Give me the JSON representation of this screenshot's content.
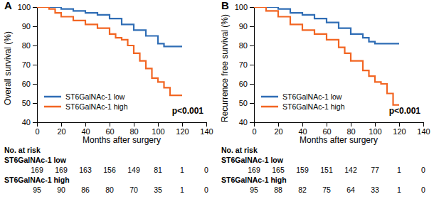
{
  "chart_data": [
    {
      "type": "line",
      "title": "A",
      "x_label": "Months after surgery",
      "y_label": "Overall survival (%)",
      "xlim": [
        0,
        140
      ],
      "xticks": [
        0,
        20,
        40,
        60,
        80,
        100,
        120,
        140
      ],
      "ylim": [
        40,
        100
      ],
      "yticks": [
        40,
        50,
        60,
        70,
        80,
        90,
        100
      ],
      "legend": "lower left",
      "line_style": "step",
      "annotation": "p<0.001",
      "series": [
        {
          "name": "ST6GalNAc-1 low",
          "color": "#2f6db5",
          "x": [
            0,
            20,
            30,
            40,
            50,
            60,
            70,
            80,
            90,
            100,
            105,
            120
          ],
          "values": [
            100,
            99,
            98,
            97,
            96,
            94,
            91,
            88,
            85,
            81,
            79.5,
            79.5
          ]
        },
        {
          "name": "ST6GalNAc-1 high",
          "color": "#f26522",
          "x": [
            0,
            10,
            15,
            20,
            30,
            40,
            50,
            60,
            65,
            70,
            75,
            80,
            85,
            90,
            95,
            100,
            105,
            110,
            120
          ],
          "values": [
            100,
            99,
            97,
            95,
            93,
            91,
            89,
            86,
            84,
            83,
            80,
            76,
            72,
            68,
            63,
            61,
            58,
            54,
            54
          ]
        }
      ],
      "risk_table": {
        "title": "No. at risk",
        "rows": [
          {
            "name": "ST6GalNAc-1 low",
            "values": [
              169,
              169,
              163,
              156,
              149,
              81,
              1,
              0
            ]
          },
          {
            "name": "ST6GalNAc-1 high",
            "values": [
              95,
              90,
              86,
              80,
              70,
              35,
              1,
              0
            ]
          }
        ]
      }
    },
    {
      "type": "line",
      "title": "B",
      "x_label": "Months after surgery",
      "y_label": "Recurrence free survival (%)",
      "xlim": [
        0,
        140
      ],
      "xticks": [
        0,
        20,
        40,
        60,
        80,
        100,
        120,
        140
      ],
      "ylim": [
        40,
        100
      ],
      "yticks": [
        40,
        50,
        60,
        70,
        80,
        90,
        100
      ],
      "legend": "lower left",
      "line_style": "step",
      "annotation": "p<0.001",
      "series": [
        {
          "name": "ST6GalNAc-1 low",
          "color": "#2f6db5",
          "x": [
            0,
            20,
            30,
            40,
            50,
            60,
            70,
            80,
            90,
            95,
            100,
            120
          ],
          "values": [
            100,
            99,
            97,
            96,
            94,
            92,
            89,
            86,
            84,
            82,
            81,
            81
          ]
        },
        {
          "name": "ST6GalNAc-1 high",
          "color": "#f26522",
          "x": [
            0,
            10,
            20,
            30,
            40,
            50,
            60,
            70,
            75,
            80,
            90,
            95,
            100,
            105,
            110,
            115,
            120
          ],
          "values": [
            100,
            98,
            95,
            91,
            88,
            86,
            83,
            79,
            76,
            72,
            67,
            64,
            61,
            60,
            55,
            49,
            49
          ]
        }
      ],
      "risk_table": {
        "title": "No. at risk",
        "rows": [
          {
            "name": "ST6GalNAc-1 low",
            "values": [
              169,
              165,
              159,
              151,
              142,
              77,
              1,
              0
            ]
          },
          {
            "name": "ST6GalNAc-1 high",
            "values": [
              95,
              88,
              82,
              75,
              64,
              33,
              1,
              0
            ]
          }
        ]
      }
    }
  ]
}
